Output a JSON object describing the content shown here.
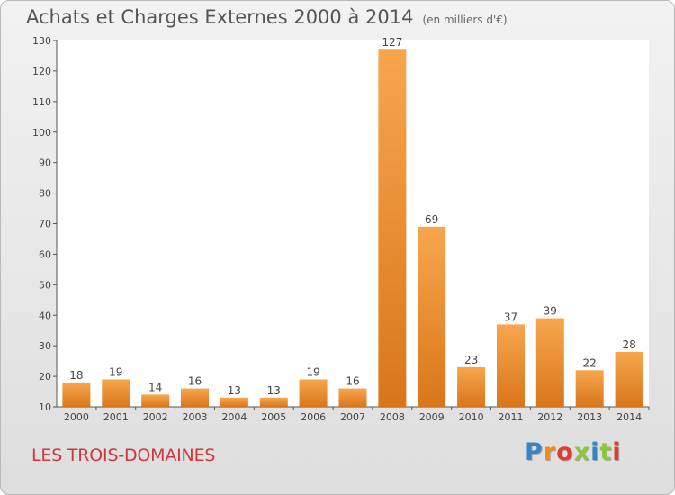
{
  "header": {
    "title": "Achats et Charges Externes 2000 à 2014",
    "subtitle": "(en milliers d'€)"
  },
  "footer": {
    "location": "LES TROIS-DOMAINES",
    "brand": "Proxiti",
    "brand_colors": [
      "#3b84c4",
      "#f08a1c",
      "#e03c31",
      "#8cc63f",
      "#3b84c4",
      "#8cc63f",
      "#e03c31"
    ]
  },
  "colors": {
    "bar_light": "#f7a64e",
    "bar_dark": "#d9761b",
    "location_text": "#d2363a"
  },
  "chart_data": {
    "type": "bar",
    "categories": [
      "2000",
      "2001",
      "2002",
      "2003",
      "2004",
      "2005",
      "2006",
      "2007",
      "2008",
      "2009",
      "2010",
      "2011",
      "2012",
      "2013",
      "2014"
    ],
    "values": [
      18,
      19,
      14,
      16,
      13,
      13,
      19,
      16,
      127,
      69,
      23,
      37,
      39,
      22,
      28
    ],
    "ylim": [
      10,
      130
    ],
    "yticks": [
      10,
      20,
      30,
      40,
      50,
      60,
      70,
      80,
      90,
      100,
      110,
      120,
      130
    ],
    "grid": false,
    "data_labels": true
  }
}
